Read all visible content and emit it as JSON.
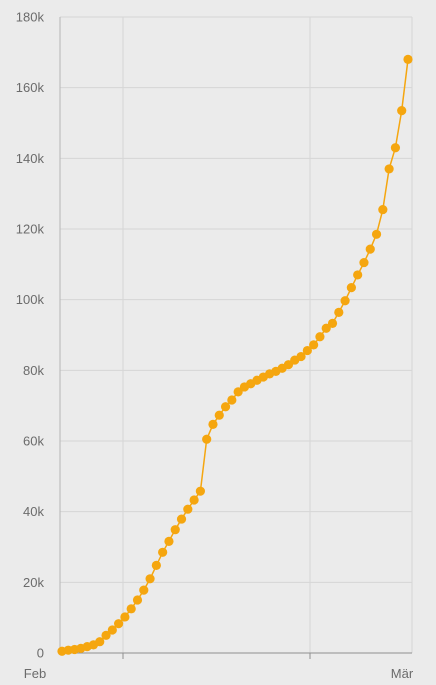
{
  "chart_data": {
    "type": "line",
    "x_axis": {
      "ticks": [
        {
          "label": "",
          "day": 0
        },
        {
          "label": "Feb",
          "day": 0
        },
        {
          "label": "",
          "day": 0
        },
        {
          "label": "Mär",
          "day": 0
        }
      ]
    },
    "y_axis": {
      "min": 0,
      "max": 180000,
      "ticks": [
        0,
        20000,
        40000,
        60000,
        80000,
        100000,
        120000,
        140000,
        160000,
        180000
      ],
      "tick_labels": [
        "0",
        "20k",
        "40k",
        "60k",
        "80k",
        "100k",
        "120k",
        "140k",
        "160k",
        "180k"
      ]
    },
    "grid": true,
    "series": [
      {
        "color": "#f5a60f",
        "values": [
          500,
          800,
          1000,
          1300,
          1800,
          2300,
          3200,
          5000,
          6500,
          8300,
          10200,
          12500,
          15000,
          17800,
          21000,
          24800,
          28500,
          31600,
          34900,
          37900,
          40700,
          43300,
          45800,
          60500,
          64700,
          67300,
          69700,
          71600,
          73900,
          75300,
          76200,
          77200,
          78100,
          79000,
          79700,
          80600,
          81600,
          82900,
          83900,
          85600,
          87200,
          89500,
          91900,
          93300,
          96400,
          99700,
          103400,
          107000,
          110500,
          114300,
          118500,
          125500,
          137000,
          143000,
          153500,
          168000
        ]
      }
    ]
  }
}
